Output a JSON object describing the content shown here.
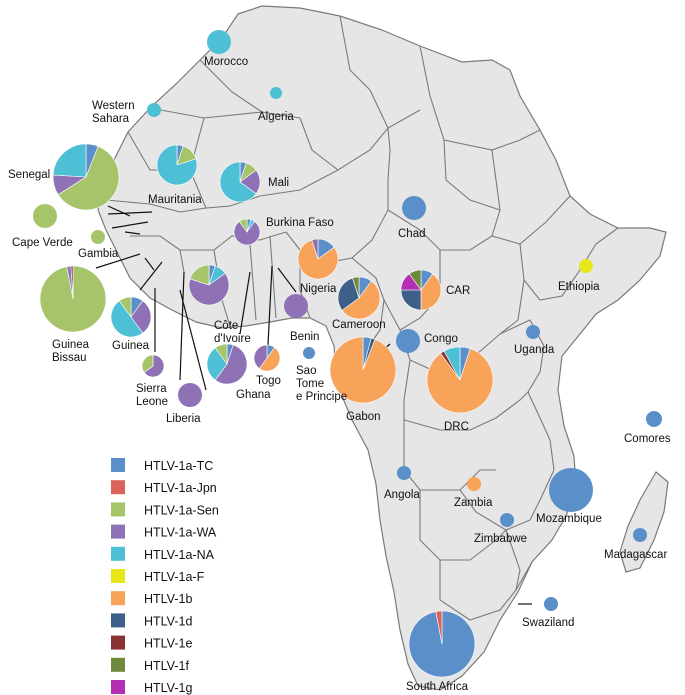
{
  "colors": {
    "land": "#e6e6e6",
    "border": "#7a7a7a",
    "TC": "#5b8fc9",
    "Jpn": "#d9645a",
    "Sen": "#a6c46a",
    "WA": "#8f72b5",
    "NA": "#4ec0d6",
    "F": "#e6e61a",
    "1b": "#f7a35a",
    "1d": "#3d5f8a",
    "1e": "#8a3333",
    "1f": "#6f8a3d",
    "1g": "#b52fb5"
  },
  "legend": [
    {
      "key": "TC",
      "label": "HTLV-1a-TC"
    },
    {
      "key": "Jpn",
      "label": "HTLV-1a-Jpn"
    },
    {
      "key": "Sen",
      "label": "HTLV-1a-Sen"
    },
    {
      "key": "WA",
      "label": "HTLV-1a-WA"
    },
    {
      "key": "NA",
      "label": "HTLV-1a-NA"
    },
    {
      "key": "F",
      "label": "HTLV-1a-F"
    },
    {
      "key": "1b",
      "label": "HTLV-1b"
    },
    {
      "key": "1d",
      "label": "HTLV-1d"
    },
    {
      "key": "1e",
      "label": "HTLV-1e"
    },
    {
      "key": "1f",
      "label": "HTLV-1f"
    },
    {
      "key": "1g",
      "label": "HTLV-1g"
    }
  ],
  "countries": [
    {
      "name": "Morocco",
      "lines": [
        "Morocco"
      ],
      "slices": [
        [
          "NA",
          1
        ]
      ]
    },
    {
      "name": "Algeria",
      "lines": [
        "Algeria"
      ],
      "slices": [
        [
          "NA",
          1
        ]
      ]
    },
    {
      "name": "Western Sahara",
      "lines": [
        "Western",
        "Sahara"
      ],
      "slices": [
        [
          "NA",
          1
        ]
      ]
    },
    {
      "name": "Senegal",
      "lines": [
        "Senegal"
      ],
      "slices": [
        [
          "TC",
          0.06
        ],
        [
          "Sen",
          0.6
        ],
        [
          "WA",
          0.1
        ],
        [
          "NA",
          0.24
        ]
      ]
    },
    {
      "name": "Mauritania",
      "lines": [
        "Mauritania"
      ],
      "slices": [
        [
          "TC",
          0.05
        ],
        [
          "Sen",
          0.15
        ],
        [
          "NA",
          0.8
        ]
      ]
    },
    {
      "name": "Mali",
      "lines": [
        "Mali"
      ],
      "slices": [
        [
          "TC",
          0.05
        ],
        [
          "Sen",
          0.1
        ],
        [
          "WA",
          0.2
        ],
        [
          "NA",
          0.65
        ]
      ]
    },
    {
      "name": "Cape Verde",
      "lines": [
        "Cape Verde"
      ],
      "slices": [
        [
          "Sen",
          1
        ]
      ]
    },
    {
      "name": "Gambia",
      "lines": [
        "Gambia"
      ],
      "slices": [
        [
          "Sen",
          1
        ]
      ]
    },
    {
      "name": "Guinea Bissau",
      "lines": [
        "Guinea",
        "Bissau"
      ],
      "slices": [
        [
          "Sen",
          0.97
        ],
        [
          "WA",
          0.02
        ],
        [
          "1e",
          0.01
        ]
      ]
    },
    {
      "name": "Guinea",
      "lines": [
        "Guinea"
      ],
      "slices": [
        [
          "TC",
          0.1
        ],
        [
          "WA",
          0.3
        ],
        [
          "NA",
          0.5
        ],
        [
          "Sen",
          0.1
        ]
      ]
    },
    {
      "name": "Sierra Leone",
      "lines": [
        "Sierra",
        "Leone"
      ],
      "slices": [
        [
          "WA",
          0.65
        ],
        [
          "Sen",
          0.35
        ]
      ]
    },
    {
      "name": "Liberia",
      "lines": [
        "Liberia"
      ],
      "slices": [
        [
          "WA",
          1
        ]
      ]
    },
    {
      "name": "Burkina Faso",
      "lines": [
        "Burkina Faso"
      ],
      "slices": [
        [
          "TC",
          0.05
        ],
        [
          "NA",
          0.05
        ],
        [
          "WA",
          0.8
        ],
        [
          "Sen",
          0.1
        ]
      ]
    },
    {
      "name": "Côte d'Ivoire",
      "lines": [
        "Côte",
        "d'Ivoire"
      ],
      "slices": [
        [
          "TC",
          0.05
        ],
        [
          "NA",
          0.1
        ],
        [
          "WA",
          0.65
        ],
        [
          "Sen",
          0.2
        ]
      ]
    },
    {
      "name": "Ghana",
      "lines": [
        "Ghana"
      ],
      "slices": [
        [
          "TC",
          0.05
        ],
        [
          "WA",
          0.55
        ],
        [
          "NA",
          0.3
        ],
        [
          "Sen",
          0.1
        ]
      ]
    },
    {
      "name": "Togo",
      "lines": [
        "Togo"
      ],
      "slices": [
        [
          "TC",
          0.1
        ],
        [
          "1b",
          0.5
        ],
        [
          "WA",
          0.4
        ]
      ]
    },
    {
      "name": "Benin",
      "lines": [
        "Benin"
      ],
      "slices": [
        [
          "WA",
          1
        ]
      ]
    },
    {
      "name": "Nigeria",
      "lines": [
        "Nigeria"
      ],
      "slices": [
        [
          "TC",
          0.15
        ],
        [
          "1b",
          0.8
        ],
        [
          "WA",
          0.05
        ]
      ]
    },
    {
      "name": "Sao Tome e Principe",
      "lines": [
        "Sao",
        "Tome",
        "e Principe"
      ],
      "slices": [
        [
          "TC",
          1
        ]
      ]
    },
    {
      "name": "Cameroon",
      "lines": [
        "Cameroon"
      ],
      "slices": [
        [
          "TC",
          0.1
        ],
        [
          "1b",
          0.55
        ],
        [
          "1d",
          0.3
        ],
        [
          "1f",
          0.05
        ]
      ]
    },
    {
      "name": "CAR",
      "lines": [
        "CAR"
      ],
      "slices": [
        [
          "TC",
          0.1
        ],
        [
          "1b",
          0.4
        ],
        [
          "1d",
          0.25
        ],
        [
          "1g",
          0.15
        ],
        [
          "1f",
          0.1
        ]
      ]
    },
    {
      "name": "Gabon",
      "lines": [
        "Gabon"
      ],
      "slices": [
        [
          "TC",
          0.04
        ],
        [
          "1d",
          0.02
        ],
        [
          "1b",
          0.94
        ]
      ]
    },
    {
      "name": "Congo",
      "lines": [
        "Congo"
      ],
      "slices": [
        [
          "TC",
          1
        ]
      ]
    },
    {
      "name": "DRC",
      "lines": [
        "DRC"
      ],
      "slices": [
        [
          "TC",
          0.05
        ],
        [
          "1b",
          0.85
        ],
        [
          "1e",
          0.02
        ],
        [
          "NA",
          0.08
        ]
      ]
    },
    {
      "name": "Chad",
      "lines": [
        "Chad"
      ],
      "slices": [
        [
          "TC",
          1
        ]
      ]
    },
    {
      "name": "Ethiopia",
      "lines": [
        "Ethiopia"
      ],
      "slices": [
        [
          "F",
          1
        ]
      ]
    },
    {
      "name": "Uganda",
      "lines": [
        "Uganda"
      ],
      "slices": [
        [
          "TC",
          1
        ]
      ]
    },
    {
      "name": "Comores",
      "lines": [
        "Comores"
      ],
      "slices": [
        [
          "TC",
          1
        ]
      ]
    },
    {
      "name": "Angola",
      "lines": [
        "Angola"
      ],
      "slices": [
        [
          "TC",
          1
        ]
      ]
    },
    {
      "name": "Zambia",
      "lines": [
        "Zambia"
      ],
      "slices": [
        [
          "1b",
          1
        ]
      ]
    },
    {
      "name": "Mozambique",
      "lines": [
        "Mozambique"
      ],
      "slices": [
        [
          "TC",
          1
        ]
      ]
    },
    {
      "name": "Zimbabwe",
      "lines": [
        "Zimbabwe"
      ],
      "slices": [
        [
          "TC",
          1
        ]
      ]
    },
    {
      "name": "Madagascar",
      "lines": [
        "Madagascar"
      ],
      "slices": [
        [
          "TC",
          1
        ]
      ]
    },
    {
      "name": "Swaziland",
      "lines": [
        "Swaziland"
      ],
      "slices": [
        [
          "TC",
          1
        ]
      ]
    },
    {
      "name": "South Africa",
      "lines": [
        "South Africa"
      ],
      "slices": [
        [
          "TC",
          0.97
        ],
        [
          "Jpn",
          0.03
        ]
      ]
    }
  ]
}
